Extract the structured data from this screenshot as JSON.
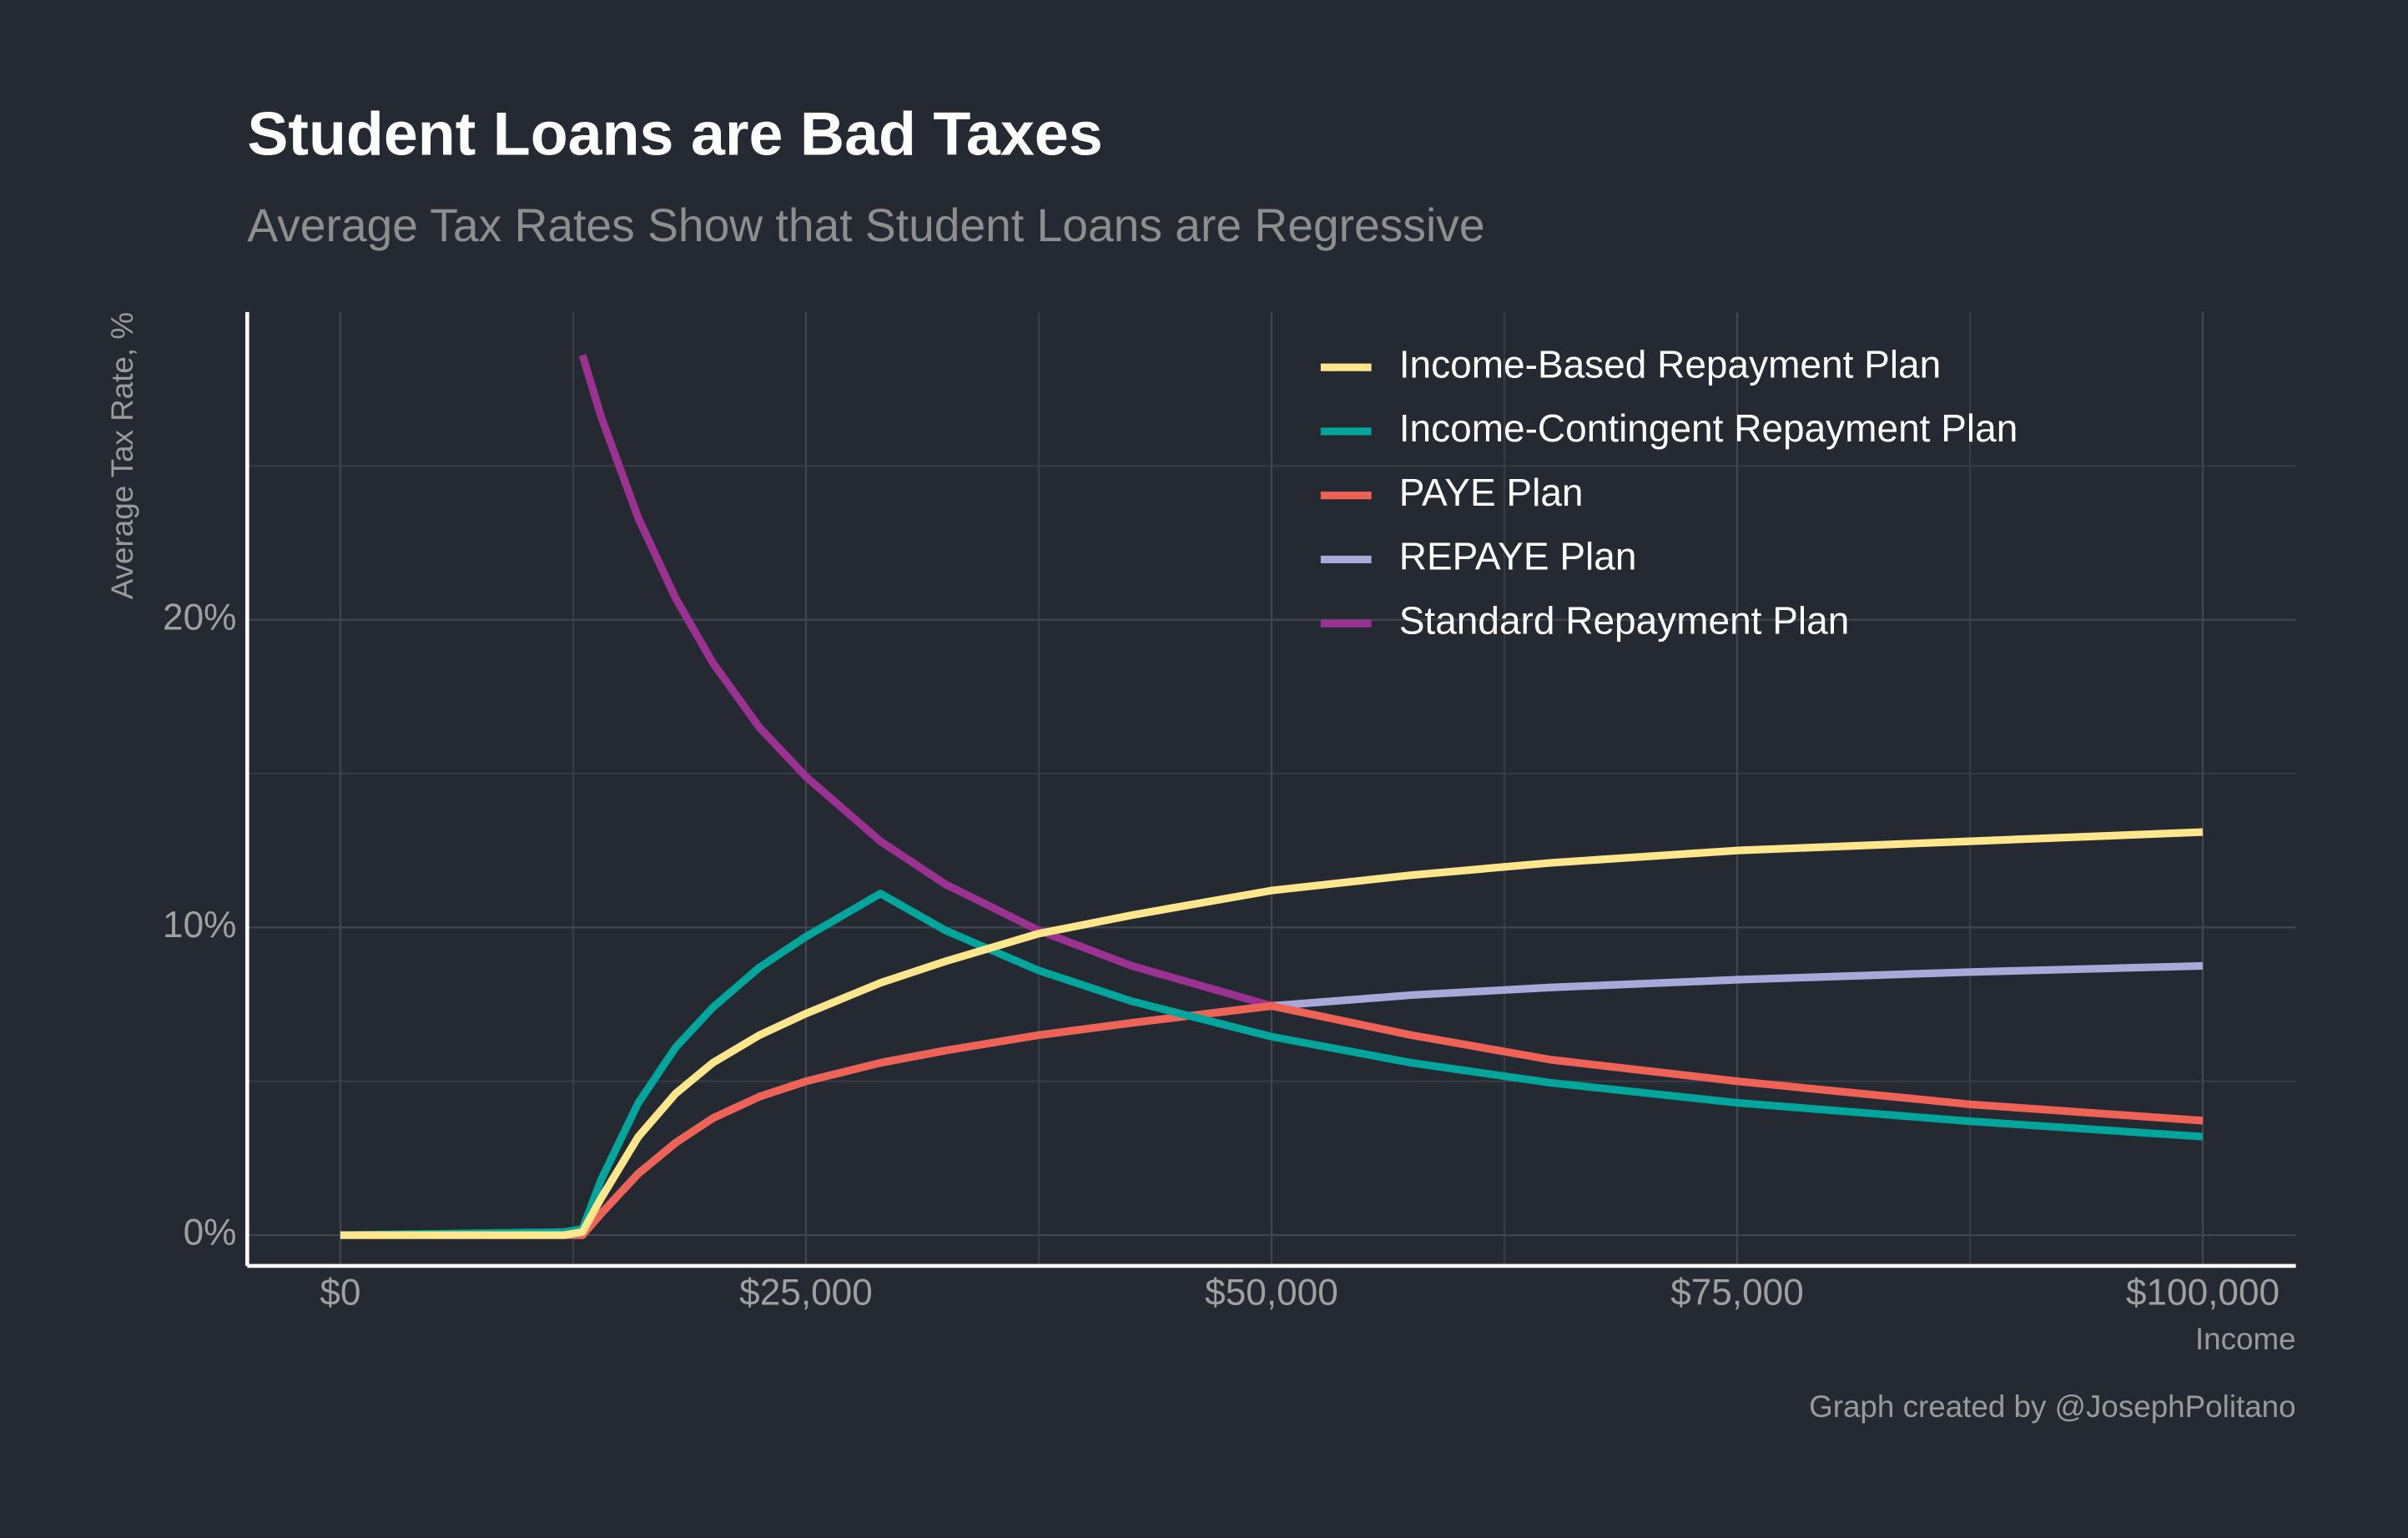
{
  "chart_data": {
    "type": "line",
    "title": "Student Loans are Bad Taxes",
    "subtitle": "Average Tax Rates Show that Student Loans are Regressive",
    "x_label": "Income",
    "y_label": "Average Tax Rate, %",
    "caption": "Graph created by @JosephPolitano",
    "x": [
      0,
      12000,
      13000,
      14000,
      16000,
      18000,
      20000,
      22500,
      25000,
      29000,
      32500,
      37500,
      42500,
      50000,
      57500,
      65000,
      75000,
      87500,
      100000
    ],
    "series": [
      {
        "name": "Income-Based Repayment Plan",
        "color": "#fde68c",
        "values": [
          0,
          0,
          0.1,
          1.2,
          3.2,
          4.6,
          5.6,
          6.5,
          7.2,
          8.2,
          8.9,
          9.8,
          10.4,
          11.2,
          11.7,
          12.1,
          12.5,
          12.8,
          13.1
        ]
      },
      {
        "name": "Income-Contingent Repayment Plan",
        "color": "#00a59b",
        "values": [
          0,
          0.1,
          0.2,
          1.8,
          4.3,
          6.1,
          7.4,
          8.7,
          9.7,
          11.1,
          9.9,
          8.6,
          7.6,
          6.45,
          5.6,
          4.95,
          4.3,
          3.7,
          3.2
        ]
      },
      {
        "name": "PAYE Plan",
        "color": "#ee6356",
        "values": [
          0,
          0,
          0,
          0.7,
          2.0,
          3.0,
          3.8,
          4.5,
          5.0,
          5.6,
          6.0,
          6.5,
          6.9,
          7.45,
          6.5,
          5.7,
          5.0,
          4.25,
          3.72
        ]
      },
      {
        "name": "REPAYE Plan",
        "color": "#a8a9d9",
        "values": [
          0,
          0,
          0,
          0.7,
          2.0,
          3.0,
          3.8,
          4.5,
          5.0,
          5.6,
          6.0,
          6.5,
          6.9,
          7.45,
          7.8,
          8.05,
          8.3,
          8.55,
          8.75
        ]
      },
      {
        "name": "Standard Repayment Plan",
        "color": "#9b3190",
        "values": [
          null,
          null,
          28.6,
          26.6,
          23.3,
          20.7,
          18.6,
          16.5,
          14.9,
          12.8,
          11.4,
          9.9,
          8.75,
          7.45,
          6.5,
          5.7,
          5.0,
          4.25,
          3.72
        ]
      }
    ],
    "xlim": [
      -5000,
      105000
    ],
    "ylim": [
      -1,
      30
    ],
    "xticks": [
      {
        "value": 0,
        "label": "$0"
      },
      {
        "value": 25000,
        "label": "$25,000"
      },
      {
        "value": 50000,
        "label": "$50,000"
      },
      {
        "value": 75000,
        "label": "$75,000"
      },
      {
        "value": 100000,
        "label": "$100,000"
      }
    ],
    "yticks": [
      {
        "value": 0,
        "label": "0%"
      },
      {
        "value": 10,
        "label": "10%"
      },
      {
        "value": 20,
        "label": "20%"
      }
    ],
    "x_minor_ticks": [
      12500,
      37500,
      62500,
      87500
    ],
    "y_minor_ticks": [
      5,
      15,
      25
    ],
    "grid": true,
    "legend": "top-right"
  }
}
